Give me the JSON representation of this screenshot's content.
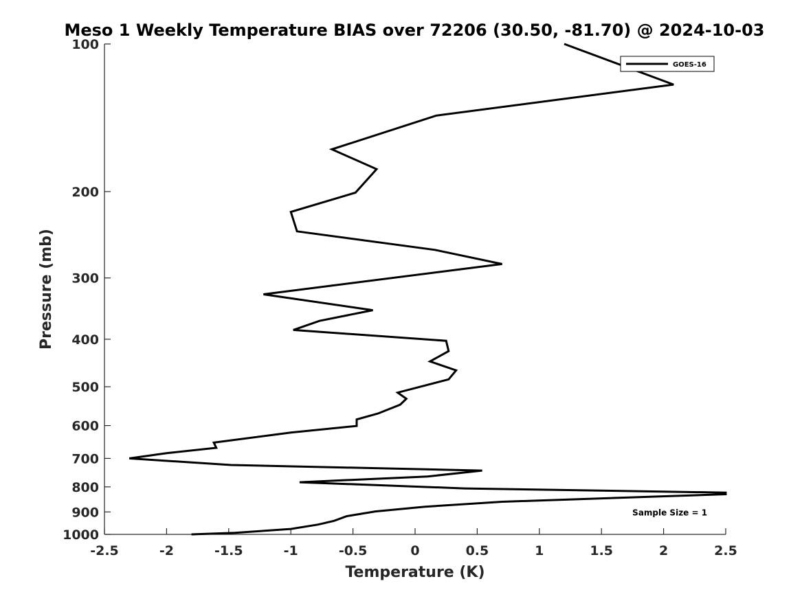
{
  "chart_data": {
    "type": "line",
    "title": "Meso 1 Weekly Temperature BIAS over 72206 (30.50, -81.70) @ 2024-10-03",
    "xlabel": "Temperature (K)",
    "ylabel": "Pressure (mb)",
    "xlim": [
      -2.5,
      2.5
    ],
    "ylim": [
      100,
      1000
    ],
    "y_scale": "log",
    "y_reversed": true,
    "grid": false,
    "xticks": [
      -2.5,
      -2,
      -1.5,
      -1,
      -0.5,
      0,
      0.5,
      1,
      1.5,
      2,
      2.5
    ],
    "xtick_labels": [
      "-2.5",
      "-2",
      "-1.5",
      "-1",
      "-0.5",
      "0",
      "0.5",
      "1",
      "1.5",
      "2",
      "2.5"
    ],
    "yticks": [
      100,
      200,
      300,
      400,
      500,
      600,
      700,
      800,
      900,
      1000
    ],
    "ytick_labels": [
      "100",
      "200",
      "300",
      "400",
      "500",
      "600",
      "700",
      "800",
      "900",
      "1000"
    ],
    "legend_position": "top-right",
    "series": [
      {
        "name": "GOES-16",
        "color": "#000000",
        "points": [
          {
            "x": -1.8,
            "y": 1000
          },
          {
            "x": -1.45,
            "y": 993
          },
          {
            "x": -1.0,
            "y": 975
          },
          {
            "x": -0.78,
            "y": 955
          },
          {
            "x": -0.65,
            "y": 938
          },
          {
            "x": -0.55,
            "y": 918
          },
          {
            "x": -0.32,
            "y": 898
          },
          {
            "x": 0.08,
            "y": 878
          },
          {
            "x": 0.7,
            "y": 858
          },
          {
            "x": 2.5,
            "y": 828
          },
          {
            "x": 2.5,
            "y": 822
          },
          {
            "x": 0.4,
            "y": 806
          },
          {
            "x": -0.93,
            "y": 783
          },
          {
            "x": 0.1,
            "y": 762
          },
          {
            "x": 0.54,
            "y": 741
          },
          {
            "x": -1.48,
            "y": 722
          },
          {
            "x": -2.3,
            "y": 700
          },
          {
            "x": -2.0,
            "y": 683
          },
          {
            "x": -1.6,
            "y": 666
          },
          {
            "x": -1.62,
            "y": 650
          },
          {
            "x": -1.0,
            "y": 620
          },
          {
            "x": -0.47,
            "y": 601
          },
          {
            "x": -0.47,
            "y": 583
          },
          {
            "x": -0.3,
            "y": 567
          },
          {
            "x": -0.12,
            "y": 544
          },
          {
            "x": -0.07,
            "y": 529
          },
          {
            "x": -0.14,
            "y": 514
          },
          {
            "x": 0.27,
            "y": 483
          },
          {
            "x": 0.33,
            "y": 463
          },
          {
            "x": 0.12,
            "y": 444
          },
          {
            "x": 0.27,
            "y": 423
          },
          {
            "x": 0.25,
            "y": 403
          },
          {
            "x": -0.98,
            "y": 383
          },
          {
            "x": -0.77,
            "y": 367
          },
          {
            "x": -0.34,
            "y": 349
          },
          {
            "x": -1.22,
            "y": 324
          },
          {
            "x": 0.7,
            "y": 281
          },
          {
            "x": 0.16,
            "y": 263
          },
          {
            "x": -0.95,
            "y": 241
          },
          {
            "x": -1.0,
            "y": 220
          },
          {
            "x": -0.48,
            "y": 201
          },
          {
            "x": -0.31,
            "y": 180
          },
          {
            "x": -0.67,
            "y": 164
          },
          {
            "x": 0.17,
            "y": 140
          },
          {
            "x": 2.08,
            "y": 121
          },
          {
            "x": 1.2,
            "y": 100
          }
        ]
      }
    ],
    "annotations": [
      {
        "text": "Sample Size = 1",
        "x": 2.05,
        "y": 900
      }
    ]
  }
}
